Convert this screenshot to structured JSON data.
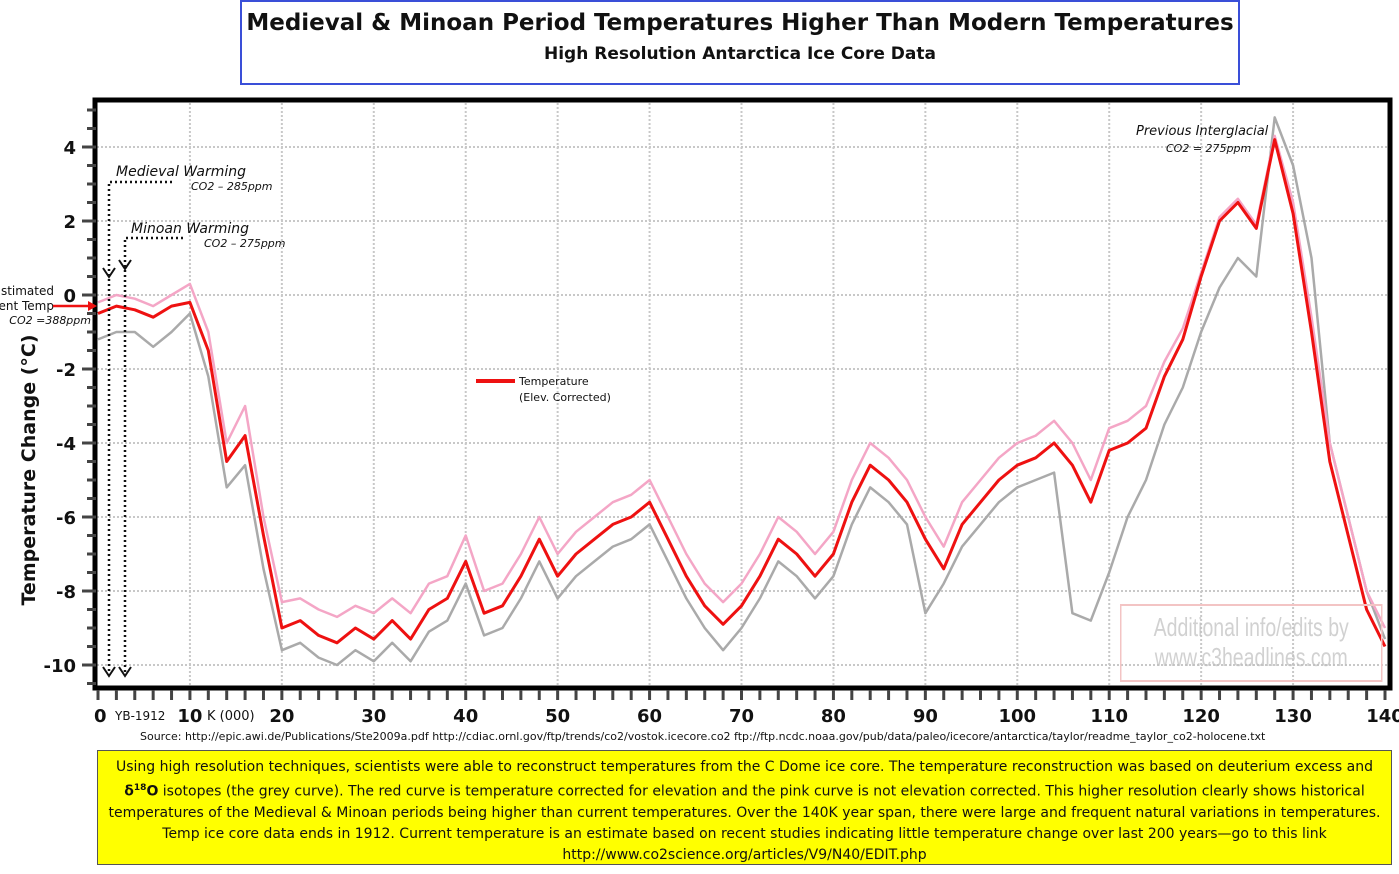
{
  "header": {
    "title": "Medieval & Minoan Period Temperatures Higher Than Modern Temperatures",
    "subtitle": "High Resolution Antarctica Ice Core Data"
  },
  "chart_data": {
    "type": "line",
    "ylabel": "Temperature Change (°C)",
    "ylim": [
      -10.5,
      5
    ],
    "xlim": [
      0,
      140
    ],
    "yticks": [
      "4",
      "2",
      "0",
      "-2",
      "-4",
      "-6",
      "-8",
      "-10"
    ],
    "ytick_values": [
      4,
      2,
      0,
      -2,
      -4,
      -6,
      -8,
      -10
    ],
    "xticks": [
      "0",
      "10",
      "20",
      "30",
      "40",
      "50",
      "60",
      "70",
      "80",
      "90",
      "100",
      "110",
      "120",
      "130",
      "140"
    ],
    "xtick_values": [
      0,
      10,
      20,
      30,
      40,
      50,
      60,
      70,
      80,
      90,
      100,
      110,
      120,
      130,
      140
    ],
    "xtick_extra": {
      "yb": "YB-1912",
      "k": "K (000)"
    },
    "grid": true,
    "legend": {
      "label1": "Temperature",
      "label2": "(Elev. Corrected)",
      "placement": "center"
    },
    "x": [
      0,
      2,
      4,
      6,
      8,
      10,
      12,
      14,
      16,
      18,
      20,
      22,
      24,
      26,
      28,
      30,
      32,
      34,
      36,
      38,
      40,
      42,
      44,
      46,
      48,
      50,
      52,
      54,
      56,
      58,
      60,
      62,
      64,
      66,
      68,
      70,
      72,
      74,
      76,
      78,
      80,
      82,
      84,
      86,
      88,
      90,
      92,
      94,
      96,
      98,
      100,
      102,
      104,
      106,
      108,
      110,
      112,
      114,
      116,
      118,
      120,
      122,
      124,
      126,
      128,
      130,
      132,
      134,
      136,
      138,
      140
    ],
    "series": [
      {
        "color": "#aaaaaa",
        "values": [
          -1.2,
          -1.0,
          -1.0,
          -1.4,
          -1.0,
          -0.5,
          -2.2,
          -5.2,
          -4.6,
          -7.4,
          -9.6,
          -9.4,
          -9.8,
          -10.0,
          -9.6,
          -9.9,
          -9.4,
          -9.9,
          -9.1,
          -8.8,
          -7.8,
          -9.2,
          -9.0,
          -8.2,
          -7.2,
          -8.2,
          -7.6,
          -7.2,
          -6.8,
          -6.6,
          -6.2,
          -7.2,
          -8.2,
          -9.0,
          -9.6,
          -9.0,
          -8.2,
          -7.2,
          -7.6,
          -8.2,
          -7.6,
          -6.2,
          -5.2,
          -5.6,
          -6.2,
          -8.6,
          -7.8,
          -6.8,
          -6.2,
          -5.6,
          -5.2,
          -5.0,
          -4.8,
          -8.6,
          -8.8,
          -7.5,
          -6.0,
          -5.0,
          -3.5,
          -2.5,
          -1.0,
          0.2,
          1.0,
          0.5,
          4.8,
          3.5,
          1.0,
          -4.0,
          -6.0,
          -8.0,
          -9.3
        ]
      },
      {
        "color": "#f4a6c6",
        "values": [
          -0.2,
          0,
          -0.1,
          -0.3,
          0,
          0.3,
          -1.0,
          -4.0,
          -3.0,
          -6.0,
          -8.3,
          -8.2,
          -8.5,
          -8.7,
          -8.4,
          -8.6,
          -8.2,
          -8.6,
          -7.8,
          -7.6,
          -6.5,
          -8.0,
          -7.8,
          -7.0,
          -6.0,
          -7.0,
          -6.4,
          -6.0,
          -5.6,
          -5.4,
          -5.0,
          -6.0,
          -7.0,
          -7.8,
          -8.3,
          -7.8,
          -7.0,
          -6.0,
          -6.4,
          -7.0,
          -6.4,
          -5.0,
          -4.0,
          -4.4,
          -5.0,
          -6.0,
          -6.8,
          -5.6,
          -5.0,
          -4.4,
          -4.0,
          -3.8,
          -3.4,
          -4.0,
          -5.0,
          -3.6,
          -3.4,
          -3.0,
          -1.8,
          -0.9,
          0.6,
          2.1,
          2.6,
          1.9,
          4.3,
          2.5,
          -0.6,
          -4.0,
          -6.0,
          -8.0,
          -9.0
        ]
      },
      {
        "name": "Temperature (Elev. Corrected)",
        "color": "#ee1111",
        "values": [
          -0.5,
          -0.3,
          -0.4,
          -0.6,
          -0.3,
          -0.2,
          -1.5,
          -4.5,
          -3.8,
          -6.5,
          -9,
          -8.8,
          -9.2,
          -9.4,
          -9.0,
          -9.3,
          -8.8,
          -9.3,
          -8.5,
          -8.2,
          -7.2,
          -8.6,
          -8.4,
          -7.6,
          -6.6,
          -7.6,
          -7.0,
          -6.6,
          -6.2,
          -6.0,
          -5.6,
          -6.6,
          -7.6,
          -8.4,
          -8.9,
          -8.4,
          -7.6,
          -6.6,
          -7.0,
          -7.6,
          -7.0,
          -5.6,
          -4.6,
          -5.0,
          -5.6,
          -6.6,
          -7.4,
          -6.2,
          -5.6,
          -5.0,
          -4.6,
          -4.4,
          -4.0,
          -4.6,
          -5.6,
          -4.2,
          -4.0,
          -3.6,
          -2.2,
          -1.2,
          0.5,
          2.0,
          2.5,
          1.8,
          4.2,
          2.2,
          -1.0,
          -4.5,
          -6.5,
          -8.5,
          -9.5
        ]
      }
    ],
    "annotations": {
      "medieval": "Medieval Warming",
      "medieval_co2": "CO2 – 285ppm",
      "minoan": "Minoan Warming",
      "minoan_co2": "CO2 – 275ppm",
      "interglacial": "Previous Interglacial",
      "interglacial_co2": "CO2 = 275ppm",
      "current1": "stimated",
      "current2": "ent Temp",
      "current_co2": "CO2 =388ppm"
    }
  },
  "source": "Source: http://epic.awi.de/Publications/Ste2009a.pdf   http://cdiac.ornl.gov/ftp/trends/co2/vostok.icecore.co2   ftp://ftp.ncdc.noaa.gov/pub/data/paleo/icecore/antarctica/taylor/readme_taylor_co2-holocene.txt",
  "note": {
    "line1": "Using high resolution techniques, scientists were able to reconstruct temperatures from the C Dome ice core. The temperature reconstruction was based on deuterium excess and",
    "line2a": "δ",
    "line2sup": "18",
    "line2b": "O",
    "line2c": " isotopes (the grey curve). The red curve is temperature corrected for elevation and the pink curve is not elevation corrected. This higher resolution clearly shows historical",
    "line3": "temperatures of the Medieval & Minoan periods being higher than current temperatures.  Over the 140K year span, there were large and frequent natural variations in temperatures.",
    "line4": "Temp ice core data ends in 1912. Current temperature is an estimate based on recent studies indicating little temperature change over last 200 years—go to this link",
    "link": "http://www.co2science.org/articles/V9/N40/EDIT.php"
  },
  "watermark": {
    "line1": "Additional info/edits by",
    "line2": "www.c3headlines.com"
  }
}
